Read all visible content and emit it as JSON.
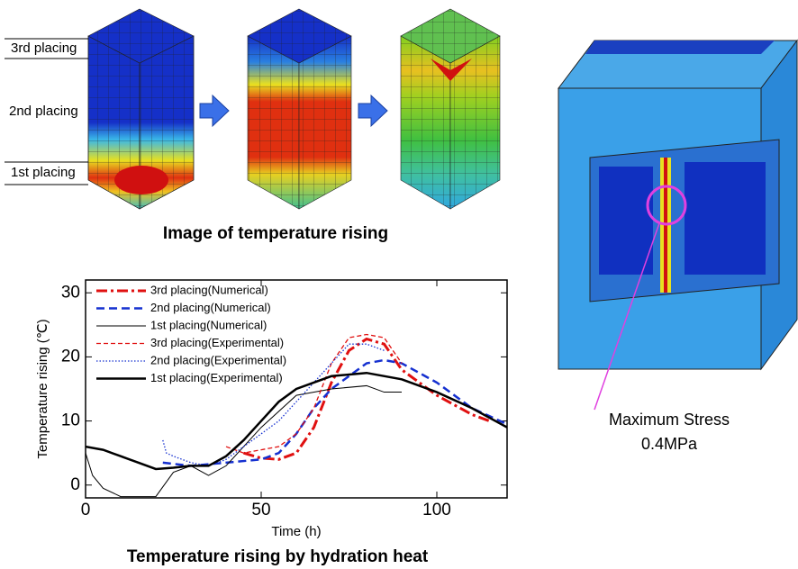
{
  "images": {
    "placing_labels": [
      "3rd placing",
      "2nd placing",
      "1st placing"
    ],
    "caption": "Image of temperature rising"
  },
  "stress_image": {
    "label_lines": [
      "Maximum Stress",
      "0.4MPa"
    ]
  },
  "chart_data": {
    "type": "line",
    "title": "Temperature rising by hydration heat",
    "x_label": "Time (h)",
    "y_label": "Temperature rising (℃)",
    "xlim": [
      0,
      120
    ],
    "ylim": [
      -2,
      32
    ],
    "xticks": [
      0,
      50,
      100
    ],
    "yticks": [
      0,
      10,
      20,
      30
    ],
    "legend": "upper left",
    "series": [
      {
        "name": "3rd placing(Numerical)",
        "color": "#e01010",
        "style": "dash-dot",
        "linewidth": 3,
        "x": [
          45,
          50,
          55,
          60,
          65,
          70,
          75,
          80,
          85,
          90,
          100,
          110,
          115
        ],
        "values": [
          5,
          4.2,
          4,
          5,
          9,
          16,
          21,
          22.8,
          22,
          18,
          14,
          11,
          10
        ]
      },
      {
        "name": "2nd placing(Numerical)",
        "color": "#1530d0",
        "style": "dashed",
        "linewidth": 2.5,
        "x": [
          22,
          30,
          40,
          50,
          55,
          60,
          65,
          70,
          75,
          80,
          85,
          90,
          100,
          110,
          120
        ],
        "values": [
          3.5,
          3,
          3.5,
          4,
          5,
          8,
          12,
          15,
          17,
          19,
          19.5,
          19,
          16,
          12,
          9.5
        ]
      },
      {
        "name": "1st placing(Numerical)",
        "color": "#000000",
        "style": "solid",
        "linewidth": 1,
        "x": [
          0,
          2,
          5,
          10,
          20,
          25,
          30,
          35,
          40,
          50,
          60,
          70,
          80,
          85,
          90
        ],
        "values": [
          5,
          1.5,
          -0.5,
          -1.8,
          -1.8,
          2,
          3,
          1.5,
          3,
          9,
          14,
          15,
          15.5,
          14.5,
          14.5
        ]
      },
      {
        "name": "3rd placing(Experimental)",
        "color": "#e01010",
        "style": "short-dash",
        "linewidth": 1.3,
        "x": [
          40,
          45,
          50,
          55,
          60,
          65,
          70,
          75,
          80,
          85,
          90
        ],
        "values": [
          6,
          5,
          5.5,
          6,
          8,
          12,
          19,
          23,
          23.5,
          23,
          19
        ]
      },
      {
        "name": "2nd placing(Experimental)",
        "color": "#1530d0",
        "style": "dotted",
        "linewidth": 1.3,
        "x": [
          22,
          23,
          25,
          30,
          35,
          40,
          45,
          50,
          55,
          60,
          65,
          70,
          75,
          80,
          85
        ],
        "values": [
          7,
          5,
          4.5,
          3.5,
          3,
          4,
          6,
          8,
          10,
          13,
          16,
          19,
          22,
          22,
          21
        ]
      },
      {
        "name": "1st placing(Experimental)",
        "color": "#000000",
        "style": "solid",
        "linewidth": 2.5,
        "x": [
          0,
          5,
          10,
          15,
          20,
          25,
          30,
          35,
          40,
          45,
          50,
          55,
          60,
          70,
          80,
          90,
          100,
          110,
          120
        ],
        "values": [
          6,
          5.5,
          4.5,
          3.5,
          2.5,
          2.7,
          3,
          3,
          4.5,
          7,
          10,
          13,
          15,
          17,
          17.5,
          16.5,
          14.5,
          12,
          9
        ]
      }
    ]
  }
}
